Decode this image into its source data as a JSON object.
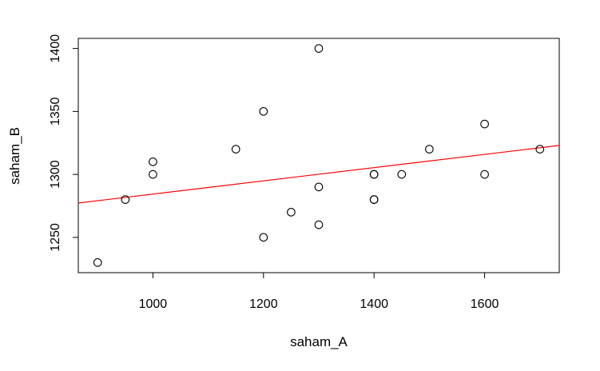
{
  "chart_data": {
    "type": "scatter",
    "title": "",
    "xlabel": "saham_A",
    "ylabel": "saham_B",
    "xlim": [
      865,
      1735
    ],
    "ylim": [
      1222,
      1408
    ],
    "x_ticks": [
      1000,
      1200,
      1400,
      1600
    ],
    "y_ticks": [
      1250,
      1300,
      1350,
      1400
    ],
    "grid": false,
    "points": [
      {
        "x": 900,
        "y": 1230
      },
      {
        "x": 950,
        "y": 1280
      },
      {
        "x": 1000,
        "y": 1310
      },
      {
        "x": 1000,
        "y": 1300
      },
      {
        "x": 1150,
        "y": 1320
      },
      {
        "x": 1200,
        "y": 1350
      },
      {
        "x": 1200,
        "y": 1250
      },
      {
        "x": 1250,
        "y": 1270
      },
      {
        "x": 1300,
        "y": 1400
      },
      {
        "x": 1300,
        "y": 1290
      },
      {
        "x": 1300,
        "y": 1260
      },
      {
        "x": 1400,
        "y": 1300
      },
      {
        "x": 1400,
        "y": 1300
      },
      {
        "x": 1400,
        "y": 1280
      },
      {
        "x": 1400,
        "y": 1280
      },
      {
        "x": 1450,
        "y": 1300
      },
      {
        "x": 1500,
        "y": 1320
      },
      {
        "x": 1600,
        "y": 1340
      },
      {
        "x": 1600,
        "y": 1300
      },
      {
        "x": 1700,
        "y": 1320
      }
    ],
    "regression_line": {
      "x": [
        865,
        1735
      ],
      "y": [
        1277.3,
        1323.0
      ],
      "color": "#ff0000"
    },
    "point_color": "#000000"
  }
}
